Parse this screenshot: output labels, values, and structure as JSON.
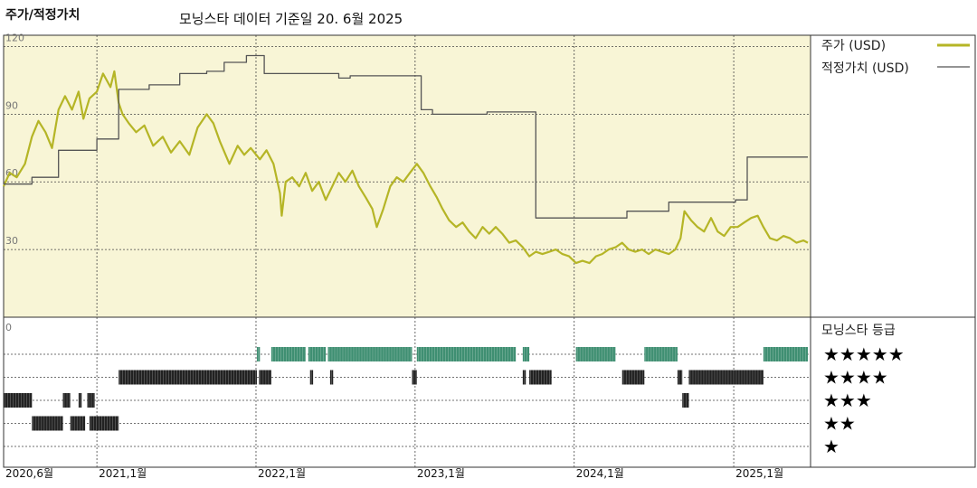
{
  "title": "주가/적정가치",
  "subtitle": "모닝스타 데이터 기준일 20. 6월 2025",
  "colors": {
    "price": "#b5b526",
    "fair": "#555555",
    "upper_bg": "#f8f5d6",
    "rating_green": "#3f8f72",
    "rating_black": "#222222"
  },
  "chart_data": [
    {
      "type": "line",
      "ylim": [
        0,
        125
      ],
      "yticks": [
        "0",
        "30",
        "60",
        "90",
        "120"
      ],
      "x_range": [
        "2020-06-01",
        "2025-06-20"
      ],
      "xticks": [
        {
          "date": "2020-06-01",
          "label": "2020,6월"
        },
        {
          "date": "2021-01-01",
          "label": "2021,1월"
        },
        {
          "date": "2022-01-01",
          "label": "2022,1월"
        },
        {
          "date": "2023-01-01",
          "label": "2023,1월"
        },
        {
          "date": "2024-01-01",
          "label": "2024,1월"
        },
        {
          "date": "2025-01-01",
          "label": "2025,1월"
        }
      ],
      "series": [
        {
          "name": "주가 (USD)",
          "color": "#b5b526",
          "points": [
            [
              "2020-06-01",
              58
            ],
            [
              "2020-06-15",
              64
            ],
            [
              "2020-07-01",
              62
            ],
            [
              "2020-07-20",
              68
            ],
            [
              "2020-08-05",
              80
            ],
            [
              "2020-08-20",
              87
            ],
            [
              "2020-09-05",
              82
            ],
            [
              "2020-09-20",
              75
            ],
            [
              "2020-10-05",
              92
            ],
            [
              "2020-10-20",
              98
            ],
            [
              "2020-11-05",
              92
            ],
            [
              "2020-11-20",
              100
            ],
            [
              "2020-12-01",
              88
            ],
            [
              "2020-12-15",
              97
            ],
            [
              "2021-01-01",
              100
            ],
            [
              "2021-01-15",
              108
            ],
            [
              "2021-02-01",
              102
            ],
            [
              "2021-02-10",
              109
            ],
            [
              "2021-02-20",
              95
            ],
            [
              "2021-03-01",
              90
            ],
            [
              "2021-03-15",
              86
            ],
            [
              "2021-04-01",
              82
            ],
            [
              "2021-04-20",
              85
            ],
            [
              "2021-05-10",
              76
            ],
            [
              "2021-06-01",
              80
            ],
            [
              "2021-06-20",
              73
            ],
            [
              "2021-07-10",
              78
            ],
            [
              "2021-08-01",
              72
            ],
            [
              "2021-08-20",
              84
            ],
            [
              "2021-09-10",
              90
            ],
            [
              "2021-09-25",
              86
            ],
            [
              "2021-10-10",
              78
            ],
            [
              "2021-11-01",
              68
            ],
            [
              "2021-11-20",
              76
            ],
            [
              "2021-12-05",
              72
            ],
            [
              "2021-12-20",
              75
            ],
            [
              "2022-01-10",
              70
            ],
            [
              "2022-01-25",
              74
            ],
            [
              "2022-02-10",
              68
            ],
            [
              "2022-02-25",
              55
            ],
            [
              "2022-03-01",
              45
            ],
            [
              "2022-03-10",
              60
            ],
            [
              "2022-03-25",
              62
            ],
            [
              "2022-04-10",
              58
            ],
            [
              "2022-04-25",
              64
            ],
            [
              "2022-05-10",
              56
            ],
            [
              "2022-05-25",
              60
            ],
            [
              "2022-06-10",
              52
            ],
            [
              "2022-06-25",
              58
            ],
            [
              "2022-07-10",
              64
            ],
            [
              "2022-07-25",
              60
            ],
            [
              "2022-08-10",
              65
            ],
            [
              "2022-08-25",
              58
            ],
            [
              "2022-09-10",
              53
            ],
            [
              "2022-09-25",
              48
            ],
            [
              "2022-10-05",
              40
            ],
            [
              "2022-10-20",
              48
            ],
            [
              "2022-11-05",
              58
            ],
            [
              "2022-11-20",
              62
            ],
            [
              "2022-12-05",
              60
            ],
            [
              "2022-12-20",
              64
            ],
            [
              "2023-01-05",
              68
            ],
            [
              "2023-01-20",
              64
            ],
            [
              "2023-02-05",
              58
            ],
            [
              "2023-02-20",
              53
            ],
            [
              "2023-03-05",
              48
            ],
            [
              "2023-03-20",
              43
            ],
            [
              "2023-04-05",
              40
            ],
            [
              "2023-04-20",
              42
            ],
            [
              "2023-05-05",
              38
            ],
            [
              "2023-05-20",
              35
            ],
            [
              "2023-06-05",
              40
            ],
            [
              "2023-06-20",
              37
            ],
            [
              "2023-07-05",
              40
            ],
            [
              "2023-07-20",
              37
            ],
            [
              "2023-08-05",
              33
            ],
            [
              "2023-08-20",
              34
            ],
            [
              "2023-09-05",
              31
            ],
            [
              "2023-09-20",
              27
            ],
            [
              "2023-10-05",
              29
            ],
            [
              "2023-10-20",
              28
            ],
            [
              "2023-11-05",
              29
            ],
            [
              "2023-11-20",
              30
            ],
            [
              "2023-12-05",
              28
            ],
            [
              "2023-12-20",
              27
            ],
            [
              "2024-01-05",
              24
            ],
            [
              "2024-01-20",
              25
            ],
            [
              "2024-02-05",
              24
            ],
            [
              "2024-02-20",
              27
            ],
            [
              "2024-03-05",
              28
            ],
            [
              "2024-03-20",
              30
            ],
            [
              "2024-04-05",
              31
            ],
            [
              "2024-04-20",
              33
            ],
            [
              "2024-05-05",
              30
            ],
            [
              "2024-05-20",
              29
            ],
            [
              "2024-06-05",
              30
            ],
            [
              "2024-06-20",
              28
            ],
            [
              "2024-07-05",
              30
            ],
            [
              "2024-07-20",
              29
            ],
            [
              "2024-08-05",
              28
            ],
            [
              "2024-08-20",
              30
            ],
            [
              "2024-09-01",
              35
            ],
            [
              "2024-09-10",
              47
            ],
            [
              "2024-09-25",
              43
            ],
            [
              "2024-10-10",
              40
            ],
            [
              "2024-10-25",
              38
            ],
            [
              "2024-11-10",
              44
            ],
            [
              "2024-11-25",
              38
            ],
            [
              "2024-12-10",
              36
            ],
            [
              "2024-12-25",
              40
            ],
            [
              "2025-01-10",
              40
            ],
            [
              "2025-01-25",
              42
            ],
            [
              "2025-02-10",
              44
            ],
            [
              "2025-02-25",
              45
            ],
            [
              "2025-03-10",
              40
            ],
            [
              "2025-03-25",
              35
            ],
            [
              "2025-04-10",
              34
            ],
            [
              "2025-04-25",
              36
            ],
            [
              "2025-05-10",
              35
            ],
            [
              "2025-05-25",
              33
            ],
            [
              "2025-06-10",
              34
            ],
            [
              "2025-06-20",
              33
            ]
          ]
        },
        {
          "name": "적정가치 (USD)",
          "color": "#555555",
          "points": [
            [
              "2020-06-01",
              59
            ],
            [
              "2020-08-05",
              59
            ],
            [
              "2020-08-05",
              62
            ],
            [
              "2020-10-05",
              62
            ],
            [
              "2020-10-05",
              74
            ],
            [
              "2021-01-01",
              74
            ],
            [
              "2021-01-01",
              79
            ],
            [
              "2021-02-20",
              79
            ],
            [
              "2021-02-20",
              101
            ],
            [
              "2021-05-01",
              101
            ],
            [
              "2021-05-01",
              103
            ],
            [
              "2021-07-10",
              103
            ],
            [
              "2021-07-10",
              108
            ],
            [
              "2021-09-10",
              108
            ],
            [
              "2021-09-10",
              109
            ],
            [
              "2021-10-20",
              109
            ],
            [
              "2021-10-20",
              113
            ],
            [
              "2021-12-10",
              113
            ],
            [
              "2021-12-10",
              116
            ],
            [
              "2022-01-20",
              116
            ],
            [
              "2022-01-20",
              108
            ],
            [
              "2022-07-10",
              108
            ],
            [
              "2022-07-10",
              106
            ],
            [
              "2022-08-05",
              106
            ],
            [
              "2022-08-05",
              107
            ],
            [
              "2023-01-15",
              107
            ],
            [
              "2023-01-15",
              92
            ],
            [
              "2023-02-10",
              92
            ],
            [
              "2023-02-10",
              90
            ],
            [
              "2023-06-15",
              90
            ],
            [
              "2023-06-15",
              91
            ],
            [
              "2023-10-05",
              91
            ],
            [
              "2023-10-05",
              44
            ],
            [
              "2024-05-01",
              44
            ],
            [
              "2024-05-01",
              47
            ],
            [
              "2024-08-05",
              47
            ],
            [
              "2024-08-05",
              51
            ],
            [
              "2025-01-05",
              51
            ],
            [
              "2025-01-05",
              52
            ],
            [
              "2025-02-01",
              52
            ],
            [
              "2025-02-01",
              71
            ],
            [
              "2025-06-20",
              71
            ]
          ]
        }
      ]
    },
    {
      "type": "rating-timeline",
      "title": "모닝스타 등급",
      "levels": [
        "★★★★★",
        "★★★★",
        "★★★",
        "★★",
        "★"
      ],
      "bars": [
        {
          "level": 5,
          "start": "2022-01-03",
          "end": "2022-01-10"
        },
        {
          "level": 5,
          "start": "2022-02-05",
          "end": "2022-04-25"
        },
        {
          "level": 5,
          "start": "2022-05-01",
          "end": "2022-06-10"
        },
        {
          "level": 5,
          "start": "2022-06-15",
          "end": "2022-12-25"
        },
        {
          "level": 5,
          "start": "2023-01-05",
          "end": "2023-08-20"
        },
        {
          "level": 5,
          "start": "2023-09-05",
          "end": "2023-09-20"
        },
        {
          "level": 5,
          "start": "2024-01-05",
          "end": "2024-04-05"
        },
        {
          "level": 5,
          "start": "2024-06-10",
          "end": "2024-08-25"
        },
        {
          "level": 5,
          "start": "2025-03-10",
          "end": "2025-06-20"
        },
        {
          "level": 4,
          "start": "2021-02-20",
          "end": "2022-01-03"
        },
        {
          "level": 4,
          "start": "2022-01-08",
          "end": "2022-02-05"
        },
        {
          "level": 4,
          "start": "2022-05-05",
          "end": "2022-05-12"
        },
        {
          "level": 4,
          "start": "2022-06-20",
          "end": "2022-06-27"
        },
        {
          "level": 4,
          "start": "2022-12-25",
          "end": "2023-01-05"
        },
        {
          "level": 4,
          "start": "2023-09-05",
          "end": "2023-09-12"
        },
        {
          "level": 4,
          "start": "2023-09-20",
          "end": "2023-11-10"
        },
        {
          "level": 4,
          "start": "2024-04-20",
          "end": "2024-06-10"
        },
        {
          "level": 4,
          "start": "2024-08-25",
          "end": "2024-09-05"
        },
        {
          "level": 4,
          "start": "2024-09-20",
          "end": "2025-03-10"
        },
        {
          "level": 3,
          "start": "2020-06-01",
          "end": "2020-08-05"
        },
        {
          "level": 3,
          "start": "2020-10-15",
          "end": "2020-11-01"
        },
        {
          "level": 3,
          "start": "2020-11-20",
          "end": "2020-11-27"
        },
        {
          "level": 3,
          "start": "2020-12-10",
          "end": "2020-12-27"
        },
        {
          "level": 3,
          "start": "2024-09-05",
          "end": "2024-09-20"
        },
        {
          "level": 2,
          "start": "2020-08-05",
          "end": "2020-10-15"
        },
        {
          "level": 2,
          "start": "2020-11-01",
          "end": "2020-12-05"
        },
        {
          "level": 2,
          "start": "2020-12-15",
          "end": "2021-02-20"
        }
      ]
    }
  ]
}
